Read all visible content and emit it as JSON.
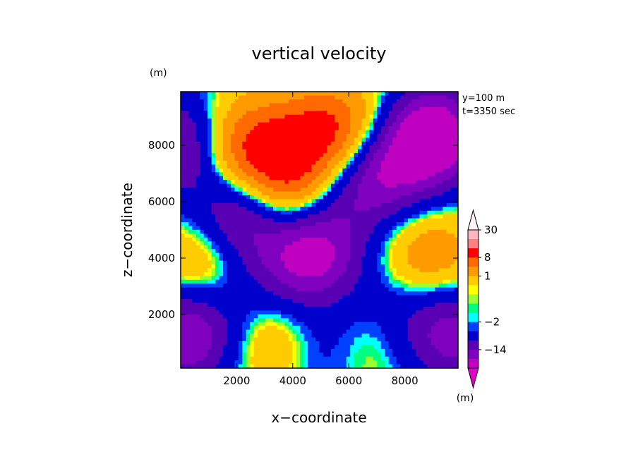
{
  "chart_data": {
    "type": "heatmap",
    "title": "vertical velocity",
    "xlabel": "x−coordinate",
    "ylabel": "z−coordinate",
    "y_unit": "(m)",
    "colorbar_unit": "(m)",
    "annotation_lines": [
      "y=100 m",
      "t=3350 sec"
    ],
    "xlim": [
      0,
      9900
    ],
    "ylim": [
      100,
      9900
    ],
    "x_ticks": [
      2000,
      4000,
      6000,
      8000
    ],
    "y_ticks": [
      2000,
      4000,
      6000,
      8000
    ],
    "colorbar_tick_labels": [
      {
        "value": 30,
        "label": "30"
      },
      {
        "value": 8,
        "label": "8"
      },
      {
        "value": 1,
        "label": "1"
      },
      {
        "value": -2,
        "label": "−2"
      },
      {
        "value": -14,
        "label": "−14"
      }
    ],
    "colorbar_levels": [
      {
        "value": 30,
        "color": "#ffb6c1"
      },
      {
        "value": 20,
        "color": "#ff8080"
      },
      {
        "value": 12,
        "color": "#ff0000"
      },
      {
        "value": 8,
        "color": "#ff6a00"
      },
      {
        "value": 4,
        "color": "#ff9b00"
      },
      {
        "value": 1,
        "color": "#ffcc00"
      },
      {
        "value": 0.5,
        "color": "#ffff00"
      },
      {
        "value": 0,
        "color": "#99ff33"
      },
      {
        "value": -0.5,
        "color": "#00ff7f"
      },
      {
        "value": -1,
        "color": "#00ffff"
      },
      {
        "value": -2,
        "color": "#0040ff"
      },
      {
        "value": -6,
        "color": "#0000cc"
      },
      {
        "value": -10,
        "color": "#5a00b4"
      },
      {
        "value": -14,
        "color": "#8000c0"
      },
      {
        "value": -20,
        "color": "#c000c0"
      }
    ],
    "features": [
      {
        "x": 4600,
        "z": 4100,
        "w": -16
      },
      {
        "x": 2200,
        "z": 5500,
        "w": -16
      },
      {
        "x": 9000,
        "z": 8300,
        "w": -20
      },
      {
        "x": 7000,
        "z": 7100,
        "w": -14
      },
      {
        "x": 5000,
        "z": 900,
        "w": -6
      },
      {
        "x": 200,
        "z": 1200,
        "w": -14
      },
      {
        "x": 200,
        "z": 8000,
        "w": -14
      },
      {
        "x": 9700,
        "z": 1300,
        "w": -12
      },
      {
        "x": 3600,
        "z": 6300,
        "w": 13
      },
      {
        "x": 1900,
        "z": 7900,
        "w": 13
      },
      {
        "x": 5900,
        "z": 8400,
        "w": 12
      },
      {
        "x": 4200,
        "z": 8200,
        "w": 8
      },
      {
        "x": 1000,
        "z": 4000,
        "w": 8
      },
      {
        "x": 8800,
        "z": 4000,
        "w": 8
      },
      {
        "x": 3400,
        "z": 1200,
        "w": 7
      },
      {
        "x": 6700,
        "z": 1300,
        "w": 6
      },
      {
        "x": 7400,
        "z": 2100,
        "w": -6
      },
      {
        "x": 2400,
        "z": 2700,
        "w": -4
      },
      {
        "x": 5600,
        "z": 5800,
        "w": -4
      }
    ]
  }
}
